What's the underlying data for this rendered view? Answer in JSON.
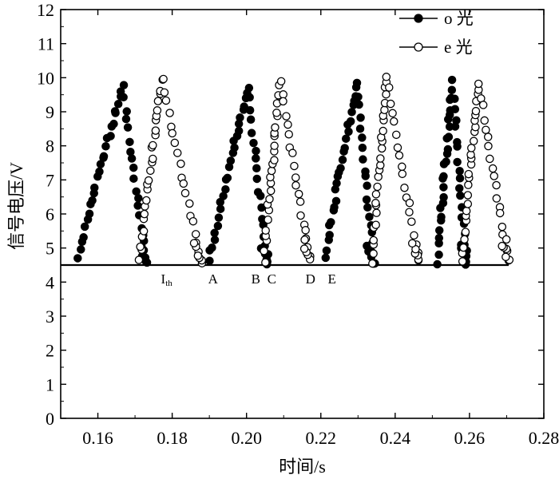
{
  "chart_data": {
    "type": "scatter",
    "xlabel": "时间/s",
    "ylabel": "信号电压/V",
    "xlim": [
      0.15,
      0.28
    ],
    "ylim": [
      0,
      12
    ],
    "x_ticks": [
      "0.16",
      "0.18",
      "0.20",
      "0.22",
      "0.24",
      "0.26",
      "0.28"
    ],
    "y_ticks": [
      "0",
      "1",
      "2",
      "3",
      "4",
      "5",
      "6",
      "7",
      "8",
      "9",
      "10",
      "11",
      "12"
    ],
    "x_tick_values": [
      0.16,
      0.18,
      0.2,
      0.22,
      0.24,
      0.26,
      0.28
    ],
    "y_tick_values": [
      0,
      1,
      2,
      3,
      4,
      5,
      6,
      7,
      8,
      9,
      10,
      11,
      12
    ],
    "baseline_y": 4.5,
    "legend_position": "top-right",
    "series": [
      {
        "name": "o 光",
        "marker": "filled-circle",
        "color": "#000000",
        "peaks": [
          {
            "x_start": 0.1548,
            "y_start": 4.7,
            "x_peak": 0.1668,
            "y_peak": 9.8,
            "x_end": 0.173,
            "y_end": 4.6
          },
          {
            "x_start": 0.19,
            "y_start": 4.6,
            "x_peak": 0.2005,
            "y_peak": 9.75,
            "x_end": 0.2058,
            "y_end": 4.6
          },
          {
            "x_start": 0.2212,
            "y_start": 4.7,
            "x_peak": 0.2298,
            "y_peak": 9.85,
            "x_end": 0.2342,
            "y_end": 4.6
          },
          {
            "x_start": 0.2513,
            "y_start": 4.6,
            "x_peak": 0.2555,
            "y_peak": 9.85,
            "x_end": 0.2592,
            "y_end": 4.6
          }
        ]
      },
      {
        "name": "e 光",
        "marker": "hollow-circle",
        "color": "#000000",
        "peaks": [
          {
            "x_start": 0.1712,
            "y_start": 4.6,
            "x_peak": 0.1775,
            "y_peak": 10.05,
            "x_end": 0.1878,
            "y_end": 4.6
          },
          {
            "x_start": 0.2048,
            "y_start": 4.65,
            "x_peak": 0.2092,
            "y_peak": 9.95,
            "x_end": 0.217,
            "y_end": 4.7
          },
          {
            "x_start": 0.2338,
            "y_start": 4.55,
            "x_peak": 0.2378,
            "y_peak": 10.05,
            "x_end": 0.2465,
            "y_end": 4.6
          },
          {
            "x_start": 0.258,
            "y_start": 4.6,
            "x_peak": 0.2625,
            "y_peak": 9.85,
            "x_end": 0.2705,
            "y_end": 4.65
          }
        ]
      }
    ],
    "annotations": [
      {
        "label": "I",
        "sub": "th",
        "x": 0.1785
      },
      {
        "label": "A",
        "x": 0.191
      },
      {
        "label": "B",
        "x": 0.2025
      },
      {
        "label": "C",
        "x": 0.2068
      },
      {
        "label": "D",
        "x": 0.2172
      },
      {
        "label": "E",
        "x": 0.223
      }
    ]
  }
}
